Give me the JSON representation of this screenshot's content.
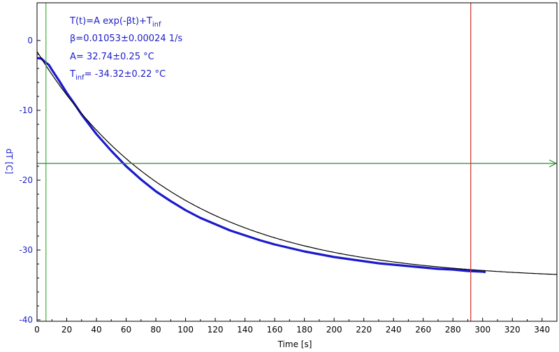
{
  "colors": {
    "axis": "#000000",
    "y_axis": "#2020c8",
    "data": "#1a1acc",
    "fit": "#000000",
    "annotation": "#2020c8",
    "green_marker": "#3cb43c",
    "red_marker": "#d03030",
    "horizontal_marker": "#2e8b2e"
  },
  "chart_data": {
    "type": "line",
    "title": "",
    "xlabel": "Time [s]",
    "ylabel": "dT [C]",
    "xlim": [
      0,
      350
    ],
    "ylim": [
      -40.2,
      5.4
    ],
    "x_ticks": [
      0,
      20,
      40,
      60,
      80,
      100,
      120,
      140,
      160,
      180,
      200,
      220,
      240,
      260,
      280,
      300,
      320,
      340
    ],
    "y_ticks": [
      0,
      -10,
      -20,
      -30,
      -40
    ],
    "x_tick_labels": [
      "0",
      "20",
      "40",
      "60",
      "80",
      "100",
      "120",
      "140",
      "160",
      "180",
      "200",
      "220",
      "240",
      "260",
      "280",
      "300",
      "320",
      "340"
    ],
    "y_tick_labels": [
      "0",
      "-10",
      "-20",
      "-30",
      "-40"
    ],
    "grid": false,
    "annotations": {
      "formula_main": "T(t)=A exp(-βt)+T",
      "formula_sub": "inf",
      "beta": "β=0.01053±0.00024 1/s",
      "amplitude": "A= 32.74±0.25 °C",
      "tinf_main": "T",
      "tinf_sub": "inf",
      "tinf_value": "= -34.32±0.22 °C"
    },
    "fit": {
      "A": 32.74,
      "beta": 0.01053,
      "T_inf": -34.32,
      "x_start": 0,
      "x_end": 350
    },
    "series": [
      {
        "name": "data",
        "x": [
          0,
          3,
          5,
          8,
          10,
          15,
          20,
          25,
          30,
          35,
          40,
          50,
          60,
          70,
          80,
          90,
          100,
          110,
          120,
          130,
          140,
          150,
          160,
          170,
          180,
          190,
          200,
          210,
          220,
          230,
          240,
          250,
          260,
          270,
          280,
          290,
          300,
          302
        ],
        "y": [
          -2.5,
          -2.6,
          -3.0,
          -3.5,
          -4.2,
          -5.8,
          -7.5,
          -9.0,
          -10.6,
          -12.0,
          -13.4,
          -15.8,
          -18.0,
          -19.9,
          -21.6,
          -23.0,
          -24.3,
          -25.4,
          -26.3,
          -27.2,
          -27.9,
          -28.6,
          -29.2,
          -29.7,
          -30.2,
          -30.6,
          -31.0,
          -31.3,
          -31.6,
          -31.9,
          -32.1,
          -32.3,
          -32.5,
          -32.7,
          -32.8,
          -33.0,
          -33.1,
          -33.15
        ]
      }
    ],
    "markers": {
      "vertical_green_x": 6,
      "vertical_red_x": 292,
      "horizontal_y": -17.6
    }
  }
}
